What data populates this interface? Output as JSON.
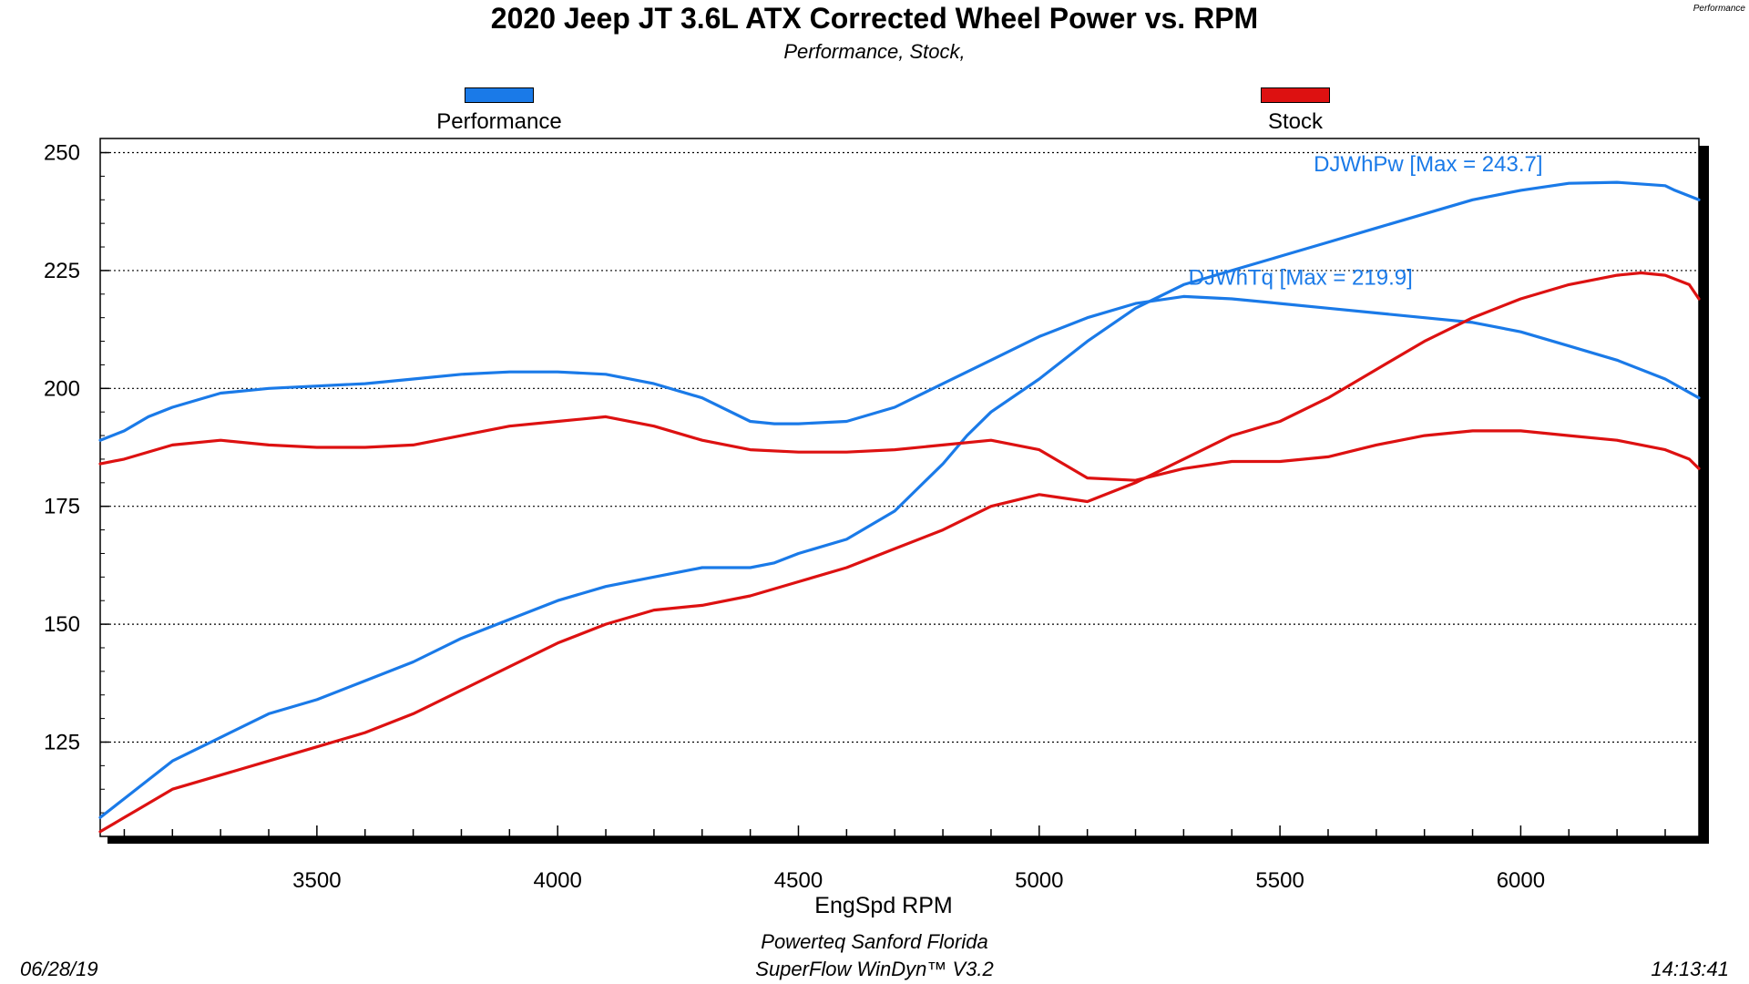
{
  "footer": {
    "line1": "Powerteq Sanford Florida",
    "line2": "SuperFlow WinDyn™  V3.2",
    "date": "06/28/19",
    "time": "14:13:41"
  },
  "corner_label": "Performance",
  "chart_data": {
    "type": "line",
    "title": "2020 Jeep JT 3.6L ATX Corrected Wheel Power vs. RPM",
    "subtitle": "Performance, Stock,",
    "xlabel": "EngSpd RPM",
    "ylabel": "",
    "xlim": [
      3050,
      6370
    ],
    "ylim": [
      105,
      253
    ],
    "xticks": [
      3500,
      4000,
      4500,
      5000,
      5500,
      6000
    ],
    "yticks": [
      125,
      150,
      175,
      200,
      225,
      250
    ],
    "grid": true,
    "legend": [
      {
        "name": "Performance",
        "color": "#1a7ae8"
      },
      {
        "name": "Stock",
        "color": "#dd1111"
      }
    ],
    "annotations": [
      {
        "text": "DJWhPw [Max = 243.7]",
        "x": 5570,
        "y": 246,
        "color": "#1a7ae8"
      },
      {
        "text": "DJWhTq [Max = 219.9]",
        "x": 5310,
        "y": 222,
        "color": "#1a7ae8"
      }
    ],
    "series": [
      {
        "name": "Performance DJWhPw",
        "color": "#1a7ae8",
        "points": [
          [
            3050,
            109
          ],
          [
            3100,
            113
          ],
          [
            3150,
            117
          ],
          [
            3200,
            121
          ],
          [
            3300,
            126
          ],
          [
            3400,
            131
          ],
          [
            3500,
            134
          ],
          [
            3600,
            138
          ],
          [
            3700,
            142
          ],
          [
            3800,
            147
          ],
          [
            3900,
            151
          ],
          [
            4000,
            155
          ],
          [
            4100,
            158
          ],
          [
            4200,
            160
          ],
          [
            4300,
            162
          ],
          [
            4400,
            162
          ],
          [
            4450,
            163
          ],
          [
            4500,
            165
          ],
          [
            4600,
            168
          ],
          [
            4700,
            174
          ],
          [
            4750,
            179
          ],
          [
            4800,
            184
          ],
          [
            4850,
            190
          ],
          [
            4900,
            195
          ],
          [
            5000,
            202
          ],
          [
            5100,
            210
          ],
          [
            5200,
            217
          ],
          [
            5300,
            222
          ],
          [
            5400,
            225
          ],
          [
            5500,
            228
          ],
          [
            5600,
            231
          ],
          [
            5700,
            234
          ],
          [
            5800,
            237
          ],
          [
            5900,
            240
          ],
          [
            6000,
            242
          ],
          [
            6100,
            243.5
          ],
          [
            6200,
            243.7
          ],
          [
            6300,
            243
          ],
          [
            6320,
            242
          ],
          [
            6370,
            240
          ]
        ]
      },
      {
        "name": "Performance DJWhTq",
        "color": "#1a7ae8",
        "points": [
          [
            3050,
            189
          ],
          [
            3100,
            191
          ],
          [
            3150,
            194
          ],
          [
            3200,
            196
          ],
          [
            3300,
            199
          ],
          [
            3400,
            200
          ],
          [
            3500,
            200.5
          ],
          [
            3600,
            201
          ],
          [
            3700,
            202
          ],
          [
            3800,
            203
          ],
          [
            3900,
            203.5
          ],
          [
            4000,
            203.5
          ],
          [
            4100,
            203
          ],
          [
            4200,
            201
          ],
          [
            4300,
            198
          ],
          [
            4400,
            193
          ],
          [
            4450,
            192.5
          ],
          [
            4500,
            192.5
          ],
          [
            4600,
            193
          ],
          [
            4700,
            196
          ],
          [
            4800,
            201
          ],
          [
            4900,
            206
          ],
          [
            5000,
            211
          ],
          [
            5100,
            215
          ],
          [
            5200,
            218
          ],
          [
            5300,
            219.5
          ],
          [
            5400,
            219
          ],
          [
            5500,
            218
          ],
          [
            5600,
            217
          ],
          [
            5700,
            216
          ],
          [
            5800,
            215
          ],
          [
            5900,
            214
          ],
          [
            6000,
            212
          ],
          [
            6100,
            209
          ],
          [
            6200,
            206
          ],
          [
            6300,
            202
          ],
          [
            6370,
            198
          ]
        ]
      },
      {
        "name": "Stock DJWhPw",
        "color": "#dd1111",
        "points": [
          [
            3050,
            106
          ],
          [
            3100,
            109
          ],
          [
            3150,
            112
          ],
          [
            3200,
            115
          ],
          [
            3300,
            118
          ],
          [
            3400,
            121
          ],
          [
            3500,
            124
          ],
          [
            3600,
            127
          ],
          [
            3700,
            131
          ],
          [
            3800,
            136
          ],
          [
            3900,
            141
          ],
          [
            4000,
            146
          ],
          [
            4100,
            150
          ],
          [
            4200,
            153
          ],
          [
            4300,
            154
          ],
          [
            4400,
            156
          ],
          [
            4500,
            159
          ],
          [
            4600,
            162
          ],
          [
            4700,
            166
          ],
          [
            4800,
            170
          ],
          [
            4900,
            175
          ],
          [
            5000,
            177.5
          ],
          [
            5100,
            176
          ],
          [
            5200,
            180
          ],
          [
            5300,
            185
          ],
          [
            5400,
            190
          ],
          [
            5500,
            193
          ],
          [
            5600,
            198
          ],
          [
            5700,
            204
          ],
          [
            5800,
            210
          ],
          [
            5900,
            215
          ],
          [
            6000,
            219
          ],
          [
            6100,
            222
          ],
          [
            6200,
            224
          ],
          [
            6250,
            224.5
          ],
          [
            6300,
            224
          ],
          [
            6350,
            222
          ],
          [
            6370,
            219
          ]
        ]
      },
      {
        "name": "Stock DJWhTq",
        "color": "#dd1111",
        "points": [
          [
            3050,
            184
          ],
          [
            3100,
            185
          ],
          [
            3200,
            188
          ],
          [
            3300,
            189
          ],
          [
            3400,
            188
          ],
          [
            3500,
            187.5
          ],
          [
            3600,
            187.5
          ],
          [
            3700,
            188
          ],
          [
            3800,
            190
          ],
          [
            3900,
            192
          ],
          [
            4000,
            193
          ],
          [
            4100,
            194
          ],
          [
            4200,
            192
          ],
          [
            4300,
            189
          ],
          [
            4400,
            187
          ],
          [
            4500,
            186.5
          ],
          [
            4600,
            186.5
          ],
          [
            4700,
            187
          ],
          [
            4800,
            188
          ],
          [
            4900,
            189
          ],
          [
            5000,
            187
          ],
          [
            5100,
            181
          ],
          [
            5200,
            180.5
          ],
          [
            5300,
            183
          ],
          [
            5400,
            184.5
          ],
          [
            5500,
            184.5
          ],
          [
            5600,
            185.5
          ],
          [
            5700,
            188
          ],
          [
            5800,
            190
          ],
          [
            5900,
            191
          ],
          [
            6000,
            191
          ],
          [
            6100,
            190
          ],
          [
            6200,
            189
          ],
          [
            6300,
            187
          ],
          [
            6350,
            185
          ],
          [
            6370,
            183
          ]
        ]
      }
    ]
  }
}
